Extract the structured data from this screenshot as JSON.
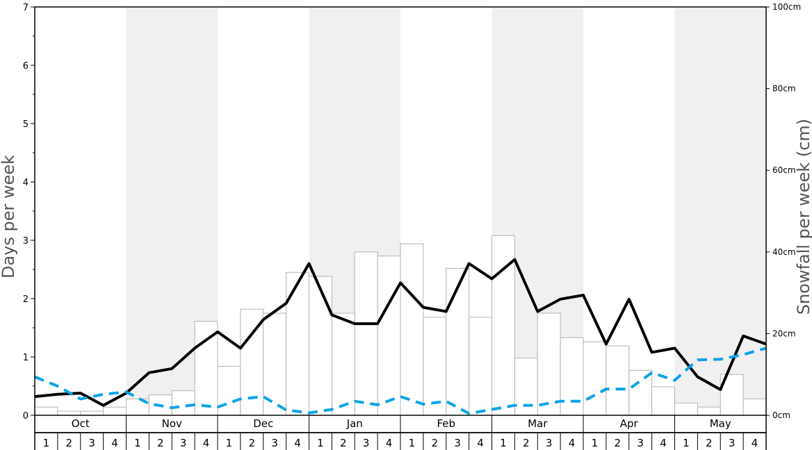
{
  "chart_data": {
    "type": "bar",
    "title": "",
    "ylabel_left": "Days per week",
    "ylabel_right": "Snowfall per week (cm)",
    "ylim_left": [
      0,
      7
    ],
    "ylim_right": [
      0,
      100
    ],
    "left_ticks": [
      "0",
      "1",
      "2",
      "3",
      "4",
      "5",
      "6",
      "7"
    ],
    "right_ticks": [
      "0cm",
      "20cm",
      "40cm",
      "60cm",
      "80cm",
      "100cm"
    ],
    "months": [
      "Oct",
      "Nov",
      "Dec",
      "Jan",
      "Feb",
      "Mar",
      "Apr",
      "May"
    ],
    "weeks": [
      "1",
      "2",
      "3",
      "4"
    ],
    "grid": false,
    "colors": {
      "bar_fill": "#ffffff",
      "bar_stroke": "#b3b3b3",
      "band_shade": "#f0f0f0",
      "line_solid": "#000000",
      "line_dashed": "#0aa3e6"
    },
    "series": [
      {
        "kind": "bar",
        "axis": "right",
        "values": [
          2,
          1,
          1,
          2,
          4,
          5,
          6,
          23,
          12,
          26,
          25,
          35,
          34,
          25,
          40,
          39,
          42,
          24,
          36,
          24,
          44,
          14,
          25,
          19,
          18,
          17,
          11,
          7,
          3,
          2,
          10,
          4
        ]
      },
      {
        "kind": "line",
        "style": "solid",
        "axis": "left",
        "values": [
          0.32,
          0.36,
          0.38,
          0.17,
          0.38,
          0.73,
          0.8,
          1.15,
          1.43,
          1.15,
          1.64,
          1.92,
          2.6,
          1.72,
          1.57,
          1.57,
          2.27,
          1.85,
          1.78,
          2.6,
          2.34,
          2.67,
          1.78,
          1.99,
          2.06,
          1.22,
          1.99,
          1.08,
          1.15,
          0.66,
          0.44,
          1.36,
          1.22
        ]
      },
      {
        "kind": "line",
        "style": "dashed",
        "axis": "left",
        "values": [
          0.66,
          0.5,
          0.28,
          0.36,
          0.4,
          0.2,
          0.13,
          0.18,
          0.14,
          0.28,
          0.32,
          0.09,
          0.04,
          0.1,
          0.24,
          0.18,
          0.32,
          0.19,
          0.24,
          0.03,
          0.1,
          0.17,
          0.17,
          0.24,
          0.24,
          0.45,
          0.45,
          0.73,
          0.6,
          0.95,
          0.96,
          1.04,
          1.15
        ]
      }
    ]
  }
}
